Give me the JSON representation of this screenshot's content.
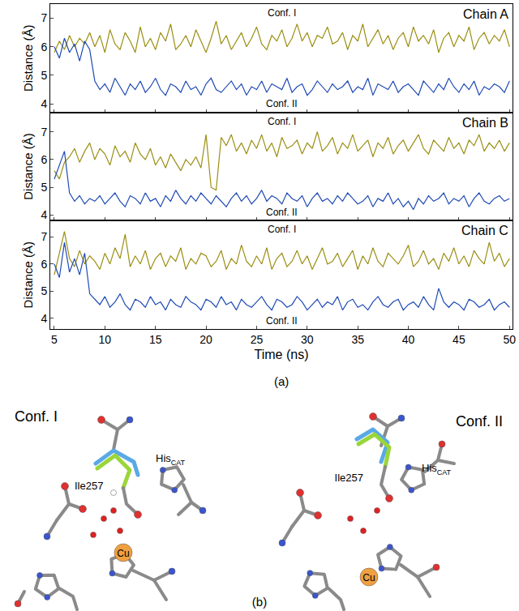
{
  "chart_data": [
    {
      "type": "line",
      "title": "Chain A",
      "y_label": "Distance (Å)",
      "tick_labels": "y",
      "grid": false,
      "xlim": [
        4.6,
        50.3
      ],
      "xticks": [
        5,
        10,
        15,
        20,
        25,
        30,
        35,
        40,
        45,
        50
      ],
      "ylim": [
        3.7,
        7.5
      ],
      "yticks": [
        4,
        5,
        6,
        7
      ],
      "x": [
        5,
        5.5,
        6,
        6.5,
        7,
        7.5,
        8,
        8.5,
        9,
        9.5,
        10,
        10.5,
        11,
        11.5,
        12,
        12.5,
        13,
        13.5,
        14,
        14.5,
        15,
        15.5,
        16,
        16.5,
        17,
        17.5,
        18,
        18.5,
        19,
        19.5,
        20,
        20.5,
        21,
        21.5,
        22,
        22.5,
        23,
        23.5,
        24,
        24.5,
        25,
        25.5,
        26,
        26.5,
        27,
        27.5,
        28,
        28.5,
        29,
        29.5,
        30,
        30.5,
        31,
        31.5,
        32,
        32.5,
        33,
        33.5,
        34,
        34.5,
        35,
        35.5,
        36,
        36.5,
        37,
        37.5,
        38,
        38.5,
        39,
        39.5,
        40,
        40.5,
        41,
        41.5,
        42,
        42.5,
        43,
        43.5,
        44,
        44.5,
        45,
        45.5,
        46,
        46.5,
        47,
        47.5,
        48,
        48.5,
        49,
        49.5,
        50
      ],
      "series": [
        {
          "name": "Conf. I",
          "color": "#9b8f14",
          "values": [
            5.8,
            6.2,
            5.9,
            6.4,
            6.0,
            6.3,
            6.1,
            6.5,
            6.0,
            6.4,
            5.8,
            6.6,
            6.1,
            5.9,
            6.5,
            6.2,
            5.8,
            6.7,
            6.0,
            6.3,
            5.9,
            6.5,
            6.2,
            6.8,
            5.9,
            6.1,
            6.4,
            6.0,
            6.6,
            6.2,
            5.8,
            6.3,
            6.9,
            6.1,
            6.4,
            5.9,
            6.2,
            6.5,
            6.0,
            6.3,
            6.7,
            6.1,
            5.9,
            6.4,
            6.2,
            6.6,
            6.0,
            6.3,
            6.8,
            6.2,
            6.5,
            6.0,
            6.4,
            6.3,
            6.7,
            6.1,
            6.2,
            6.5,
            5.9,
            6.4,
            6.2,
            6.8,
            6.0,
            6.3,
            6.6,
            6.1,
            6.4,
            5.9,
            6.3,
            6.5,
            6.0,
            6.7,
            6.2,
            6.4,
            6.1,
            6.6,
            5.8,
            6.3,
            6.5,
            6.0,
            6.4,
            6.2,
            6.7,
            5.9,
            6.3,
            6.5,
            6.1,
            6.4,
            6.2,
            6.6,
            6.0
          ]
        },
        {
          "name": "Conf. II",
          "color": "#1f4bb4",
          "values": [
            6.0,
            5.6,
            6.3,
            5.8,
            6.1,
            5.5,
            6.2,
            5.9,
            4.8,
            4.5,
            4.7,
            4.4,
            4.9,
            4.6,
            4.3,
            4.7,
            4.5,
            4.8,
            4.4,
            4.6,
            4.9,
            4.5,
            4.3,
            4.7,
            4.6,
            4.4,
            4.8,
            4.5,
            4.6,
            4.3,
            4.7,
            4.9,
            4.5,
            4.4,
            4.6,
            4.8,
            4.5,
            4.7,
            4.3,
            4.6,
            4.5,
            4.8,
            4.4,
            4.7,
            4.6,
            4.5,
            4.9,
            4.4,
            4.6,
            4.7,
            4.3,
            4.5,
            4.8,
            4.6,
            4.4,
            4.7,
            4.5,
            4.6,
            4.8,
            4.4,
            4.6,
            4.5,
            4.9,
            4.3,
            4.7,
            4.6,
            4.5,
            4.8,
            4.4,
            4.6,
            4.7,
            4.5,
            4.3,
            4.8,
            4.6,
            4.4,
            4.7,
            4.5,
            4.9,
            4.6,
            4.4,
            4.7,
            4.5,
            4.8,
            4.3,
            4.6,
            4.5,
            4.7,
            4.6,
            4.4,
            4.8
          ]
        }
      ]
    },
    {
      "type": "line",
      "title": "Chain B",
      "y_label": "Distance (Å)",
      "tick_labels": "y",
      "grid": false,
      "xlim": [
        4.6,
        50.3
      ],
      "xticks": [
        5,
        10,
        15,
        20,
        25,
        30,
        35,
        40,
        45,
        50
      ],
      "ylim": [
        3.8,
        7.7
      ],
      "yticks": [
        4,
        5,
        6,
        7
      ],
      "x": [
        5,
        5.5,
        6,
        6.5,
        7,
        7.5,
        8,
        8.5,
        9,
        9.5,
        10,
        10.5,
        11,
        11.5,
        12,
        12.5,
        13,
        13.5,
        14,
        14.5,
        15,
        15.5,
        16,
        16.5,
        17,
        17.5,
        18,
        18.5,
        19,
        19.5,
        20,
        20.5,
        21,
        21.5,
        22,
        22.5,
        23,
        23.5,
        24,
        24.5,
        25,
        25.5,
        26,
        26.5,
        27,
        27.5,
        28,
        28.5,
        29,
        29.5,
        30,
        30.5,
        31,
        31.5,
        32,
        32.5,
        33,
        33.5,
        34,
        34.5,
        35,
        35.5,
        36,
        36.5,
        37,
        37.5,
        38,
        38.5,
        39,
        39.5,
        40,
        40.5,
        41,
        41.5,
        42,
        42.5,
        43,
        43.5,
        44,
        44.5,
        45,
        45.5,
        46,
        46.5,
        47,
        47.5,
        48,
        48.5,
        49,
        49.5,
        50
      ],
      "series": [
        {
          "name": "Conf. I",
          "color": "#9b8f14",
          "values": [
            5.6,
            5.3,
            5.9,
            6.1,
            6.4,
            5.9,
            6.3,
            6.6,
            6.0,
            6.4,
            6.2,
            5.8,
            6.5,
            6.1,
            6.3,
            5.9,
            6.6,
            6.2,
            6.0,
            6.4,
            5.8,
            6.1,
            5.7,
            6.2,
            5.9,
            5.6,
            6.0,
            5.8,
            6.1,
            5.7,
            6.9,
            5.0,
            4.9,
            6.8,
            6.5,
            6.9,
            6.3,
            6.6,
            6.2,
            6.7,
            6.4,
            6.9,
            6.3,
            6.6,
            6.1,
            6.8,
            6.4,
            6.5,
            6.7,
            6.2,
            6.6,
            6.4,
            7.0,
            6.3,
            6.5,
            6.8,
            6.2,
            6.6,
            6.4,
            6.9,
            6.3,
            6.5,
            6.7,
            6.1,
            6.6,
            6.4,
            6.8,
            6.2,
            6.5,
            6.7,
            6.3,
            6.6,
            6.9,
            6.4,
            6.2,
            6.7,
            6.5,
            6.3,
            6.8,
            6.4,
            6.6,
            6.2,
            6.7,
            6.5,
            6.9,
            6.3,
            6.6,
            6.4,
            6.7,
            6.3,
            6.6
          ]
        },
        {
          "name": "Conf. II",
          "color": "#1f4bb4",
          "values": [
            5.3,
            5.8,
            6.3,
            4.8,
            4.5,
            4.7,
            4.4,
            4.6,
            4.5,
            4.7,
            4.4,
            4.6,
            4.8,
            4.5,
            4.3,
            4.7,
            4.6,
            4.4,
            4.8,
            4.5,
            4.6,
            4.3,
            4.7,
            4.5,
            4.9,
            4.6,
            4.4,
            4.7,
            4.5,
            4.8,
            4.6,
            4.4,
            4.7,
            4.5,
            4.3,
            4.6,
            4.8,
            4.5,
            4.7,
            4.4,
            4.6,
            4.9,
            4.5,
            4.7,
            4.6,
            4.4,
            4.8,
            4.6,
            4.5,
            4.7,
            4.3,
            4.6,
            4.8,
            4.5,
            4.6,
            4.4,
            4.7,
            4.5,
            4.8,
            4.6,
            4.4,
            4.5,
            4.7,
            4.3,
            4.6,
            4.5,
            4.8,
            4.4,
            4.6,
            4.3,
            4.5,
            4.2,
            4.6,
            4.4,
            4.7,
            4.5,
            4.6,
            4.8,
            4.4,
            4.6,
            4.5,
            4.7,
            4.3,
            4.6,
            4.8,
            4.5,
            4.4,
            4.6,
            4.7,
            4.5,
            4.6
          ]
        }
      ]
    },
    {
      "type": "line",
      "title": "Chain C",
      "y_label": "Distance (Å)",
      "x_label": "Time (ns)",
      "grid": false,
      "xlim": [
        4.6,
        50.3
      ],
      "xticks": [
        5,
        10,
        15,
        20,
        25,
        30,
        35,
        40,
        45,
        50
      ],
      "ylim": [
        3.6,
        7.6
      ],
      "yticks": [
        4,
        5,
        6,
        7
      ],
      "x": [
        5,
        5.5,
        6,
        6.5,
        7,
        7.5,
        8,
        8.5,
        9,
        9.5,
        10,
        10.5,
        11,
        11.5,
        12,
        12.5,
        13,
        13.5,
        14,
        14.5,
        15,
        15.5,
        16,
        16.5,
        17,
        17.5,
        18,
        18.5,
        19,
        19.5,
        20,
        20.5,
        21,
        21.5,
        22,
        22.5,
        23,
        23.5,
        24,
        24.5,
        25,
        25.5,
        26,
        26.5,
        27,
        27.5,
        28,
        28.5,
        29,
        29.5,
        30,
        30.5,
        31,
        31.5,
        32,
        32.5,
        33,
        33.5,
        34,
        34.5,
        35,
        35.5,
        36,
        36.5,
        37,
        37.5,
        38,
        38.5,
        39,
        39.5,
        40,
        40.5,
        41,
        41.5,
        42,
        42.5,
        43,
        43.5,
        44,
        44.5,
        45,
        45.5,
        46,
        46.5,
        47,
        47.5,
        48,
        48.5,
        49,
        49.5,
        50
      ],
      "series": [
        {
          "name": "Conf. I",
          "color": "#9b8f14",
          "values": [
            5.6,
            6.4,
            7.2,
            6.2,
            5.9,
            6.5,
            6.0,
            6.3,
            6.1,
            5.8,
            6.4,
            6.0,
            6.6,
            6.2,
            7.1,
            5.9,
            6.3,
            6.0,
            6.5,
            5.8,
            6.2,
            6.4,
            5.9,
            6.3,
            6.1,
            6.6,
            5.8,
            6.2,
            6.0,
            6.4,
            6.3,
            5.9,
            6.1,
            6.5,
            5.8,
            6.2,
            6.0,
            6.7,
            6.1,
            5.9,
            6.3,
            6.0,
            6.6,
            5.8,
            6.2,
            6.4,
            5.9,
            6.1,
            6.5,
            6.0,
            6.3,
            5.8,
            6.2,
            6.6,
            6.0,
            6.1,
            6.4,
            5.9,
            6.2,
            6.5,
            5.8,
            6.3,
            6.0,
            6.6,
            6.1,
            5.9,
            6.4,
            6.2,
            6.0,
            6.3,
            6.7,
            5.9,
            6.1,
            6.5,
            6.0,
            6.2,
            5.8,
            6.4,
            6.1,
            6.6,
            6.0,
            6.3,
            5.9,
            6.5,
            6.2,
            6.0,
            6.8,
            6.1,
            6.4,
            5.9,
            6.2
          ]
        },
        {
          "name": "Conf. II",
          "color": "#1f4bb4",
          "values": [
            6.0,
            5.5,
            6.8,
            5.7,
            6.2,
            5.6,
            6.4,
            4.9,
            4.7,
            4.5,
            4.8,
            4.4,
            4.6,
            4.9,
            4.5,
            4.3,
            4.7,
            4.6,
            4.4,
            4.8,
            4.5,
            4.6,
            4.3,
            4.7,
            4.5,
            4.4,
            4.8,
            4.6,
            4.5,
            4.3,
            4.7,
            4.6,
            4.4,
            4.8,
            4.5,
            4.6,
            4.3,
            4.7,
            4.5,
            4.4,
            4.6,
            4.8,
            4.5,
            4.3,
            4.7,
            4.6,
            4.4,
            4.5,
            4.8,
            4.6,
            4.3,
            4.5,
            4.7,
            4.4,
            4.6,
            4.5,
            4.8,
            4.3,
            4.6,
            4.7,
            4.4,
            4.5,
            4.3,
            4.6,
            4.8,
            4.5,
            4.4,
            4.6,
            4.7,
            4.3,
            4.5,
            4.6,
            4.4,
            4.8,
            4.5,
            4.3,
            5.1,
            4.6,
            4.4,
            4.6,
            4.5,
            4.3,
            4.7,
            4.6,
            4.4,
            4.5,
            4.7,
            4.3,
            4.5,
            4.6,
            4.4
          ]
        }
      ]
    }
  ],
  "chart_label": "(a)",
  "diagram": {
    "label": "(b)",
    "structures": [
      {
        "title": "Conf. I",
        "residue": "Ile257",
        "his": {
          "text": "His",
          "subscript": "CAT"
        },
        "metal": "Cu"
      },
      {
        "title": "Conf. II",
        "residue": "Ile257",
        "his": {
          "text": "His",
          "subscript": "CAT"
        },
        "metal": "Cu"
      }
    ]
  }
}
